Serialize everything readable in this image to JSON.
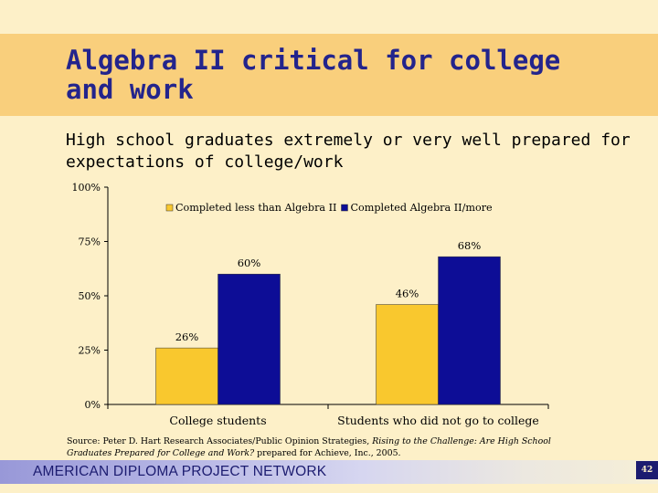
{
  "slide": {
    "title": "Algebra II critical for college and work",
    "subtitle": "High school graduates extremely or very well prepared for expectations of college/work",
    "source_prefix": "Source: Peter D. Hart Research Associates/Public Opinion Strategies, ",
    "source_italic": "Rising to the Challenge: Are High School Graduates Prepared for College and Work?",
    "source_suffix": " prepared for Achieve, Inc., 2005.",
    "footer": "AMERICAN DIPLOMA PROJECT NETWORK",
    "page_number": "42"
  },
  "colors": {
    "title_band": "#f9cf7c",
    "background": "#fdf0c8",
    "title_text": "#23248c",
    "series_less": "#f9c82e",
    "series_more": "#0d0d96",
    "footer_text": "#1c1c70"
  },
  "chart_data": {
    "type": "bar",
    "categories": [
      "College students",
      "Students who did not go to college"
    ],
    "series": [
      {
        "name": "Completed less than Algebra II",
        "values": [
          26,
          46
        ],
        "labels": [
          "26%",
          "46%"
        ],
        "color": "#f9c82e"
      },
      {
        "name": "Completed Algebra II/more",
        "values": [
          60,
          68
        ],
        "labels": [
          "60%",
          "68%"
        ],
        "color": "#0d0d96"
      }
    ],
    "ylim": [
      0,
      100
    ],
    "yticks": [
      0,
      25,
      50,
      75,
      100
    ],
    "ytick_labels": [
      "0%",
      "25%",
      "50%",
      "75%",
      "100%"
    ],
    "legend_position": "top",
    "grid": false
  }
}
